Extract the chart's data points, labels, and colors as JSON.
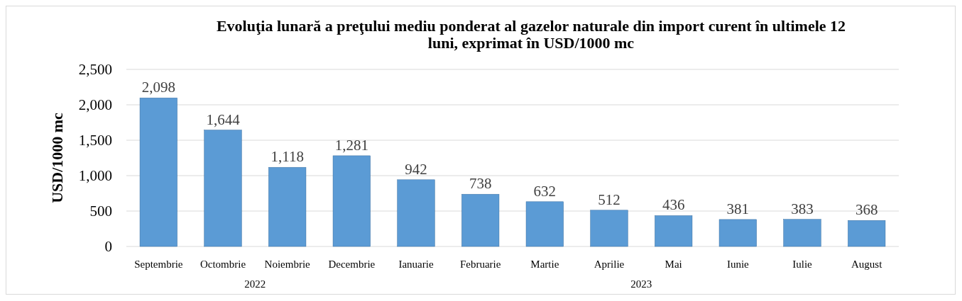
{
  "chart_data": {
    "type": "bar",
    "title": "Evoluţia lunară a preţului mediu ponderat al gazelor naturale din import curent în ultimele 12 luni, exprimat în USD/1000 mc",
    "ylabel": "USD/1000 mc",
    "categories": [
      "Septembrie",
      "Octombrie",
      "Noiembrie",
      "Decembrie",
      "Ianuarie",
      "Februarie",
      "Martie",
      "Aprilie",
      "Mai",
      "Iunie",
      "Iulie",
      "August"
    ],
    "values": [
      2098,
      1644,
      1118,
      1281,
      942,
      738,
      632,
      512,
      436,
      381,
      383,
      368
    ],
    "color": "#5b9bd5",
    "ylim": [
      0,
      2500
    ],
    "yticks": [
      {
        "value": 0,
        "label": "0"
      },
      {
        "value": 500,
        "label": "500"
      },
      {
        "value": 1000,
        "label": "1,000"
      },
      {
        "value": 1500,
        "label": "1,500"
      },
      {
        "value": 2000,
        "label": "2,000"
      },
      {
        "value": 2500,
        "label": "2,500"
      }
    ],
    "grid": "y",
    "value_labels": [
      "2,098",
      "1,644",
      "1,118",
      "1,281",
      "942",
      "738",
      "632",
      "512",
      "436",
      "381",
      "383",
      "368"
    ],
    "annotations": [
      "2022",
      "2023"
    ]
  }
}
